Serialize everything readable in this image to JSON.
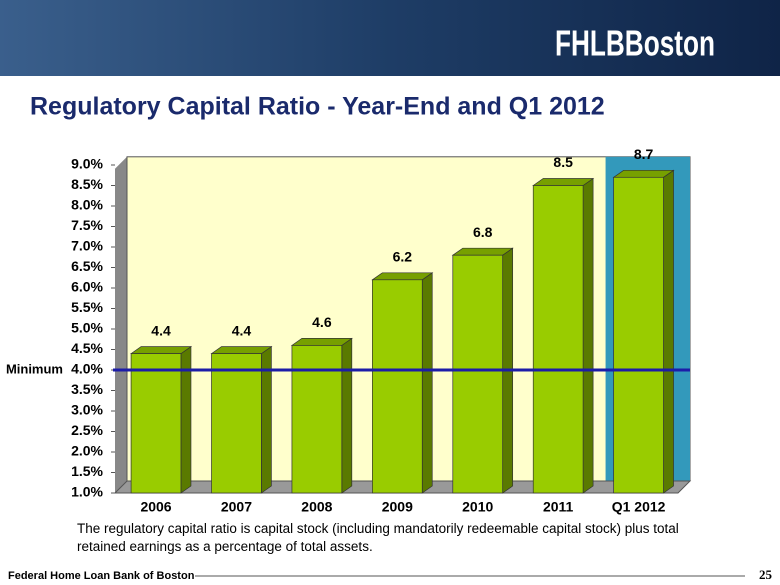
{
  "logo": "FHLBBoston",
  "footer": {
    "organization": "Federal Home Loan Bank of Boston",
    "page": "25"
  },
  "chart_data": {
    "type": "bar",
    "title": "Regulatory Capital Ratio - Year-End and Q1 2012",
    "categories": [
      "2006",
      "2007",
      "2008",
      "2009",
      "2010",
      "2011",
      "Q1 2012"
    ],
    "values": [
      4.4,
      4.4,
      4.6,
      6.2,
      6.8,
      8.5,
      8.7
    ],
    "color": "#99cc00",
    "ylim": [
      1,
      9.2
    ],
    "yticks": [
      {
        "value": 1,
        "label": "1.0%"
      },
      {
        "value": 1.5,
        "label": "1.5%"
      },
      {
        "value": 2,
        "label": "2.0%"
      },
      {
        "value": 2.5,
        "label": "2.5%"
      },
      {
        "value": 3,
        "label": "3.0%"
      },
      {
        "value": 3.5,
        "label": "3.5%"
      },
      {
        "value": 4,
        "label": "4.0%"
      },
      {
        "value": 4.5,
        "label": "4.5%"
      },
      {
        "value": 5,
        "label": "5.0%"
      },
      {
        "value": 5.5,
        "label": "5.5%"
      },
      {
        "value": 6,
        "label": "6.0%"
      },
      {
        "value": 6.5,
        "label": "6.5%"
      },
      {
        "value": 7,
        "label": "7.0%"
      },
      {
        "value": 7.5,
        "label": "7.5%"
      },
      {
        "value": 8,
        "label": "8.0%"
      },
      {
        "value": 8.5,
        "label": "8.5%"
      },
      {
        "value": 9,
        "label": "9.0%"
      }
    ],
    "reference_line": {
      "label": "Minimum",
      "value": 4,
      "color": "#1c1ca8"
    },
    "highlight_category": 6,
    "highlight_color": "#3399bb",
    "note": "The regulatory capital ratio is capital stock (including mandatorily redeemable capital stock) plus total retained earnings as a percentage of total assets."
  }
}
